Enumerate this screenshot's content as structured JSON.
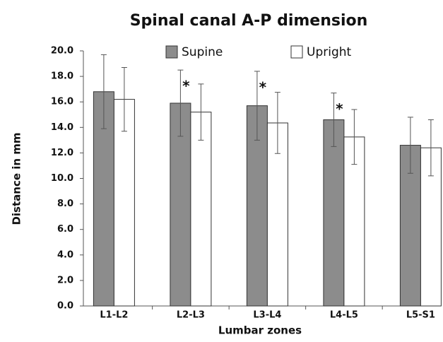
{
  "chart_data": {
    "type": "bar",
    "title": "Spinal canal A-P dimension",
    "x_label": "Lumbar zones",
    "y_label": "Distance in mm",
    "categories": [
      "L1-L2",
      "L2-L3",
      "L3-L4",
      "L4-L5",
      "L5-S1"
    ],
    "series": [
      {
        "name": "Supine",
        "color": "#8c8c8c",
        "values": [
          16.8,
          15.9,
          15.7,
          14.6,
          12.6
        ],
        "errors": [
          2.9,
          2.6,
          2.7,
          2.1,
          2.2
        ]
      },
      {
        "name": "Upright",
        "color": "#ffffff",
        "values": [
          16.2,
          15.2,
          14.35,
          13.25,
          12.4
        ],
        "errors": [
          2.5,
          2.2,
          2.4,
          2.15,
          2.2
        ]
      }
    ],
    "significance": [
      null,
      "*",
      "*",
      "*",
      null
    ],
    "ylim": [
      0,
      20
    ],
    "yticks": [
      {
        "value": 0,
        "label": "0.0"
      },
      {
        "value": 2,
        "label": "2.0"
      },
      {
        "value": 4,
        "label": "4.0"
      },
      {
        "value": 6,
        "label": "6.0"
      },
      {
        "value": 8,
        "label": "8.0"
      },
      {
        "value": 10,
        "label": "10.0"
      },
      {
        "value": 12,
        "label": "12.0"
      },
      {
        "value": 14,
        "label": "14.0"
      },
      {
        "value": 16,
        "label": "16.0"
      },
      {
        "value": 18,
        "label": "18.0"
      },
      {
        "value": 20,
        "label": "20.0"
      }
    ],
    "grid": false,
    "legend": "top"
  }
}
